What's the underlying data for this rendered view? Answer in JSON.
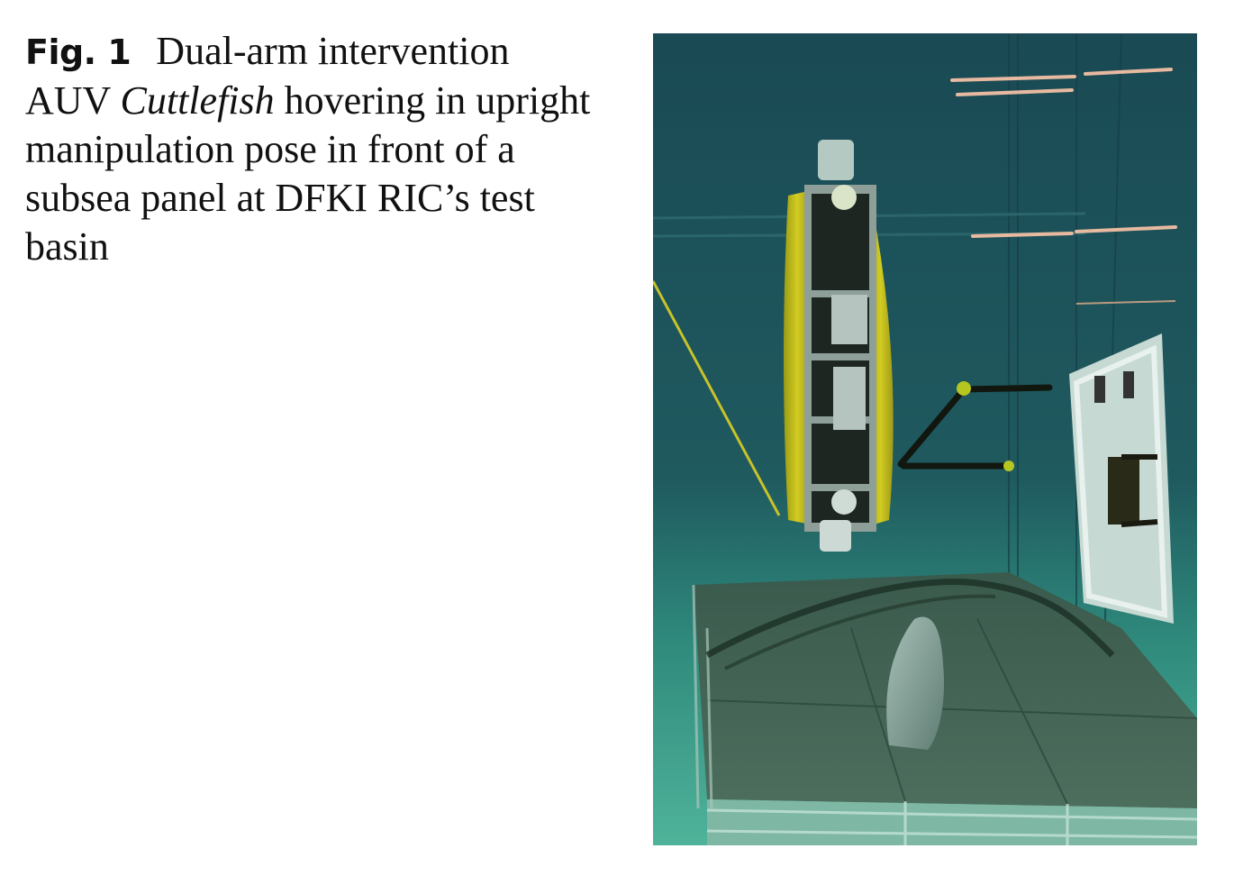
{
  "caption": {
    "label": "Fig. 1",
    "text_before": "Dual-arm intervention AUV ",
    "vehicle_name": "Cuttlefish",
    "text_after": " hovering in upright manipulation pose in front of a subsea panel at DFKI RIC’s test basin"
  },
  "photo": {
    "subject": "underwater-vehicle-in-test-basin",
    "water_color": "#1f4f55",
    "hull_color": "#c8c21a",
    "floor_color": "#3d5a4a"
  }
}
